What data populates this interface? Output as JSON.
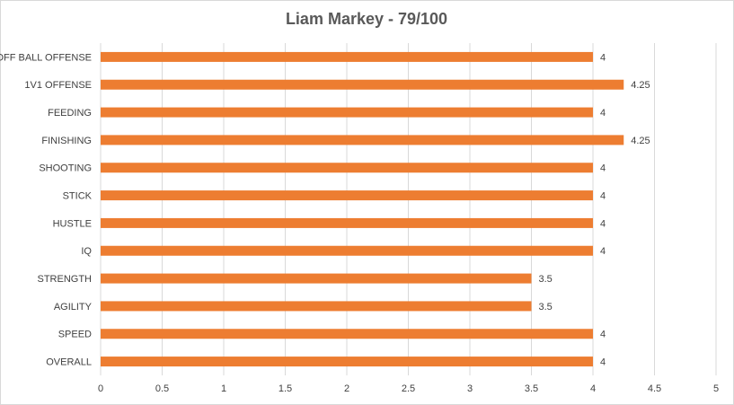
{
  "chart_data": {
    "type": "bar",
    "orientation": "horizontal",
    "title": "Liam Markey - 79/100",
    "categories": [
      "OFF BALL OFFENSE",
      "1V1 OFFENSE",
      "FEEDING",
      "FINISHING",
      "SHOOTING",
      "STICK",
      "HUSTLE",
      "IQ",
      "STRENGTH",
      "AGILITY",
      "SPEED",
      "OVERALL"
    ],
    "values": [
      4,
      4.25,
      4,
      4.25,
      4,
      4,
      4,
      4,
      3.5,
      3.5,
      4,
      4
    ],
    "color": "#ed7d31",
    "xlim": [
      0,
      5
    ],
    "xticks": [
      0,
      0.5,
      1,
      1.5,
      2,
      2.5,
      3,
      3.5,
      4,
      4.5,
      5
    ],
    "grid": true
  }
}
